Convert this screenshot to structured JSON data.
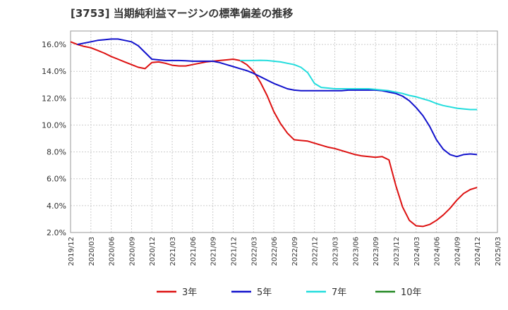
{
  "chart_data": {
    "type": "line",
    "title": "[3753]  当期純利益マージンの標準偏差の推移",
    "xlabel": "",
    "ylabel": "",
    "ylim": [
      2.0,
      17.0
    ],
    "yticks": [
      2.0,
      4.0,
      6.0,
      8.0,
      10.0,
      12.0,
      14.0,
      16.0
    ],
    "ytick_labels": [
      "2.0%",
      "4.0%",
      "6.0%",
      "8.0%",
      "10.0%",
      "12.0%",
      "14.0%",
      "16.0%"
    ],
    "x_start": "2019/12",
    "xtick_labels": [
      "2019/12",
      "2020/03",
      "2020/06",
      "2020/09",
      "2020/12",
      "2021/03",
      "2021/06",
      "2021/09",
      "2021/12",
      "2022/03",
      "2022/06",
      "2022/09",
      "2022/12",
      "2023/03",
      "2023/06",
      "2023/09",
      "2023/12",
      "2024/03",
      "2024/06",
      "2024/09",
      "2024/12",
      "2025/03"
    ],
    "grid": true,
    "legend_position": "bottom",
    "series": [
      {
        "name": "3年",
        "color": "#dd1111",
        "x": [
          "2019/12",
          "2020/01",
          "2020/02",
          "2020/03",
          "2020/04",
          "2020/05",
          "2020/06",
          "2020/07",
          "2020/08",
          "2020/09",
          "2020/10",
          "2020/11",
          "2020/12",
          "2021/01",
          "2021/02",
          "2021/03",
          "2021/04",
          "2021/05",
          "2021/06",
          "2021/07",
          "2021/08",
          "2021/09",
          "2021/10",
          "2021/11",
          "2021/12",
          "2022/01",
          "2022/02",
          "2022/03",
          "2022/04",
          "2022/05",
          "2022/06",
          "2022/07",
          "2022/08",
          "2022/09",
          "2022/10",
          "2022/11",
          "2022/12",
          "2023/01",
          "2023/02",
          "2023/03",
          "2023/04",
          "2023/05",
          "2023/06",
          "2023/07",
          "2023/08",
          "2023/09",
          "2023/10",
          "2023/11",
          "2023/12",
          "2024/01",
          "2024/02",
          "2024/03",
          "2024/04",
          "2024/05",
          "2024/06",
          "2024/07",
          "2024/08",
          "2024/09",
          "2024/10",
          "2024/11",
          "2024/12"
        ],
        "values": [
          16.2,
          16.0,
          15.85,
          15.75,
          15.55,
          15.35,
          15.1,
          14.9,
          14.7,
          14.5,
          14.3,
          14.2,
          14.65,
          14.7,
          14.6,
          14.45,
          14.4,
          14.4,
          14.5,
          14.6,
          14.7,
          14.75,
          14.8,
          14.85,
          14.9,
          14.8,
          14.5,
          14.0,
          13.2,
          12.2,
          11.0,
          10.1,
          9.4,
          8.9,
          8.85,
          8.8,
          8.65,
          8.5,
          8.35,
          8.25,
          8.1,
          7.95,
          7.8,
          7.7,
          7.65,
          7.6,
          7.65,
          7.4,
          5.5,
          3.9,
          2.9,
          2.5,
          2.45,
          2.6,
          2.9,
          3.3,
          3.8,
          4.4,
          4.9,
          5.2,
          5.35
        ]
      },
      {
        "name": "5年",
        "color": "#1111cc",
        "x": [
          "2020/01",
          "2020/02",
          "2020/03",
          "2020/04",
          "2020/05",
          "2020/06",
          "2020/07",
          "2020/08",
          "2020/09",
          "2020/10",
          "2020/11",
          "2020/12",
          "2021/01",
          "2021/02",
          "2021/03",
          "2021/04",
          "2021/05",
          "2021/06",
          "2021/07",
          "2021/08",
          "2021/09",
          "2021/10",
          "2021/11",
          "2021/12",
          "2022/01",
          "2022/02",
          "2022/03",
          "2022/04",
          "2022/05",
          "2022/06",
          "2022/07",
          "2022/08",
          "2022/09",
          "2022/10",
          "2022/11",
          "2022/12",
          "2023/01",
          "2023/02",
          "2023/03",
          "2023/04",
          "2023/05",
          "2023/06",
          "2023/07",
          "2023/08",
          "2023/09",
          "2023/10",
          "2023/11",
          "2023/12",
          "2024/01",
          "2024/02",
          "2024/03",
          "2024/04",
          "2024/05",
          "2024/06",
          "2024/07",
          "2024/08",
          "2024/09",
          "2024/10",
          "2024/11",
          "2024/12"
        ],
        "values": [
          16.0,
          16.1,
          16.2,
          16.3,
          16.35,
          16.4,
          16.4,
          16.3,
          16.2,
          15.9,
          15.4,
          14.9,
          14.85,
          14.8,
          14.8,
          14.8,
          14.78,
          14.75,
          14.75,
          14.75,
          14.75,
          14.65,
          14.5,
          14.35,
          14.2,
          14.05,
          13.85,
          13.6,
          13.35,
          13.1,
          12.9,
          12.7,
          12.6,
          12.55,
          12.55,
          12.55,
          12.55,
          12.55,
          12.55,
          12.55,
          12.6,
          12.6,
          12.6,
          12.6,
          12.6,
          12.55,
          12.45,
          12.35,
          12.15,
          11.8,
          11.3,
          10.7,
          9.9,
          8.9,
          8.2,
          7.8,
          7.65,
          7.8,
          7.85,
          7.8
        ]
      },
      {
        "name": "7年",
        "color": "#22dddd",
        "x": [
          "2022/01",
          "2022/02",
          "2022/03",
          "2022/04",
          "2022/05",
          "2022/06",
          "2022/07",
          "2022/08",
          "2022/09",
          "2022/10",
          "2022/11",
          "2022/12",
          "2023/01",
          "2023/02",
          "2023/03",
          "2023/04",
          "2023/05",
          "2023/06",
          "2023/07",
          "2023/08",
          "2023/09",
          "2023/10",
          "2023/11",
          "2023/12",
          "2024/01",
          "2024/02",
          "2024/03",
          "2024/04",
          "2024/05",
          "2024/06",
          "2024/07",
          "2024/08",
          "2024/09",
          "2024/10",
          "2024/11",
          "2024/12"
        ],
        "values": [
          14.8,
          14.8,
          14.8,
          14.82,
          14.8,
          14.75,
          14.7,
          14.6,
          14.5,
          14.3,
          13.9,
          13.1,
          12.8,
          12.75,
          12.7,
          12.7,
          12.7,
          12.7,
          12.7,
          12.7,
          12.65,
          12.6,
          12.55,
          12.45,
          12.35,
          12.2,
          12.1,
          11.95,
          11.8,
          11.6,
          11.45,
          11.35,
          11.25,
          11.2,
          11.15,
          11.15
        ]
      },
      {
        "name": "10年",
        "color": "#228822",
        "x": [],
        "values": []
      }
    ]
  }
}
